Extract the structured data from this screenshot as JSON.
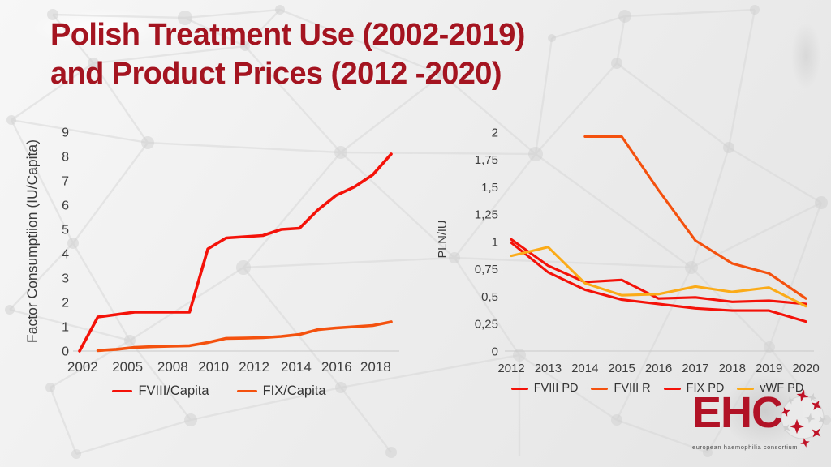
{
  "slide": {
    "title_line1": "Polish Treatment Use (2002-2019)",
    "title_line2": "and Product Prices (2012 -2020)",
    "title_color": "#a41420"
  },
  "colors": {
    "red": "#f41209",
    "orange_red": "#f4510e",
    "amber": "#fbab18",
    "axis_text": "#3d3d3d",
    "axis_line": "#c9c9c9"
  },
  "logo": {
    "text": "EHC",
    "subtitle": "european haemophilia consortium",
    "color": "#b11226"
  },
  "chart_data": [
    {
      "type": "line",
      "title": "",
      "xlabel": "",
      "ylabel": "Factor Consumptiion (IU/Capita)",
      "x": [
        2002,
        2003,
        2004,
        2005,
        2006,
        2007,
        2008,
        2009,
        2010,
        2011,
        2012,
        2013,
        2014,
        2015,
        2016,
        2017,
        2018,
        2019
      ],
      "ylim": [
        0,
        9
      ],
      "grid": false,
      "legend_position": "bottom",
      "yticks": [
        {
          "v": 0,
          "label": "0"
        },
        {
          "v": 1,
          "label": "1"
        },
        {
          "v": 2,
          "label": "2"
        },
        {
          "v": 3,
          "label": "3"
        },
        {
          "v": 4,
          "label": "4"
        },
        {
          "v": 5,
          "label": "5"
        },
        {
          "v": 6,
          "label": "6"
        },
        {
          "v": 7,
          "label": "7"
        },
        {
          "v": 8,
          "label": "8"
        },
        {
          "v": 9,
          "label": "9"
        }
      ],
      "xticks": [
        {
          "f": 0.01,
          "label": "2002"
        },
        {
          "f": 0.154,
          "label": "2005"
        },
        {
          "f": 0.299,
          "label": "2008"
        },
        {
          "f": 0.43,
          "label": "2010"
        },
        {
          "f": 0.56,
          "label": "2012"
        },
        {
          "f": 0.695,
          "label": "2014"
        },
        {
          "f": 0.825,
          "label": "2016"
        },
        {
          "f": 0.95,
          "label": "2018"
        }
      ],
      "series": [
        {
          "name": "FVIII/Capita",
          "color": "#f41209",
          "values": [
            0,
            1.4,
            1.5,
            1.6,
            1.6,
            1.6,
            1.6,
            4.2,
            4.65,
            4.7,
            4.75,
            5.0,
            5.05,
            5.8,
            6.4,
            6.75,
            7.25,
            8.1
          ]
        },
        {
          "name": "FIX/Capita",
          "color": "#f4510e",
          "values": [
            null,
            0.02,
            0.07,
            0.15,
            0.18,
            0.2,
            0.22,
            0.35,
            0.52,
            0.53,
            0.55,
            0.6,
            0.68,
            0.88,
            0.95,
            1.0,
            1.05,
            1.2
          ]
        }
      ]
    },
    {
      "type": "line",
      "title": "",
      "xlabel": "",
      "ylabel": "PLN/IU",
      "x": [
        2012,
        2013,
        2014,
        2015,
        2016,
        2017,
        2018,
        2019,
        2020
      ],
      "ylim": [
        0,
        2
      ],
      "grid": false,
      "legend_position": "bottom",
      "yticks": [
        {
          "v": 0,
          "label": "0"
        },
        {
          "v": 0.25,
          "label": "0,25"
        },
        {
          "v": 0.5,
          "label": "0,5"
        },
        {
          "v": 0.75,
          "label": "0,75"
        },
        {
          "v": 1,
          "label": "1"
        },
        {
          "v": 1.25,
          "label": "1,25"
        },
        {
          "v": 1.5,
          "label": "1,5"
        },
        {
          "v": 1.75,
          "label": "1,75"
        },
        {
          "v": 2,
          "label": "2"
        }
      ],
      "xticks": [
        {
          "f": 0,
          "label": "2012"
        },
        {
          "f": 0.125,
          "label": "2013"
        },
        {
          "f": 0.25,
          "label": "2014"
        },
        {
          "f": 0.375,
          "label": "2015"
        },
        {
          "f": 0.5,
          "label": "2016"
        },
        {
          "f": 0.625,
          "label": "2017"
        },
        {
          "f": 0.75,
          "label": "2018"
        },
        {
          "f": 0.875,
          "label": "2019"
        },
        {
          "f": 1,
          "label": "2020"
        }
      ],
      "series": [
        {
          "name": "FVIII PD",
          "color": "#f41209",
          "values": [
            1.02,
            0.78,
            0.63,
            0.65,
            0.48,
            0.49,
            0.45,
            0.46,
            0.43
          ]
        },
        {
          "name": "FVIII R",
          "color": "#f4510e",
          "values": [
            null,
            null,
            1.96,
            1.96,
            1.47,
            1.01,
            0.8,
            0.71,
            0.48
          ]
        },
        {
          "name": "FIX PD",
          "color": "#f41209",
          "values": [
            0.99,
            0.72,
            0.56,
            0.47,
            0.43,
            0.39,
            0.37,
            0.37,
            0.27
          ]
        },
        {
          "name": "vWF PD",
          "color": "#fbab18",
          "values": [
            0.87,
            0.95,
            0.62,
            0.51,
            0.52,
            0.59,
            0.54,
            0.58,
            0.41
          ]
        }
      ]
    }
  ]
}
